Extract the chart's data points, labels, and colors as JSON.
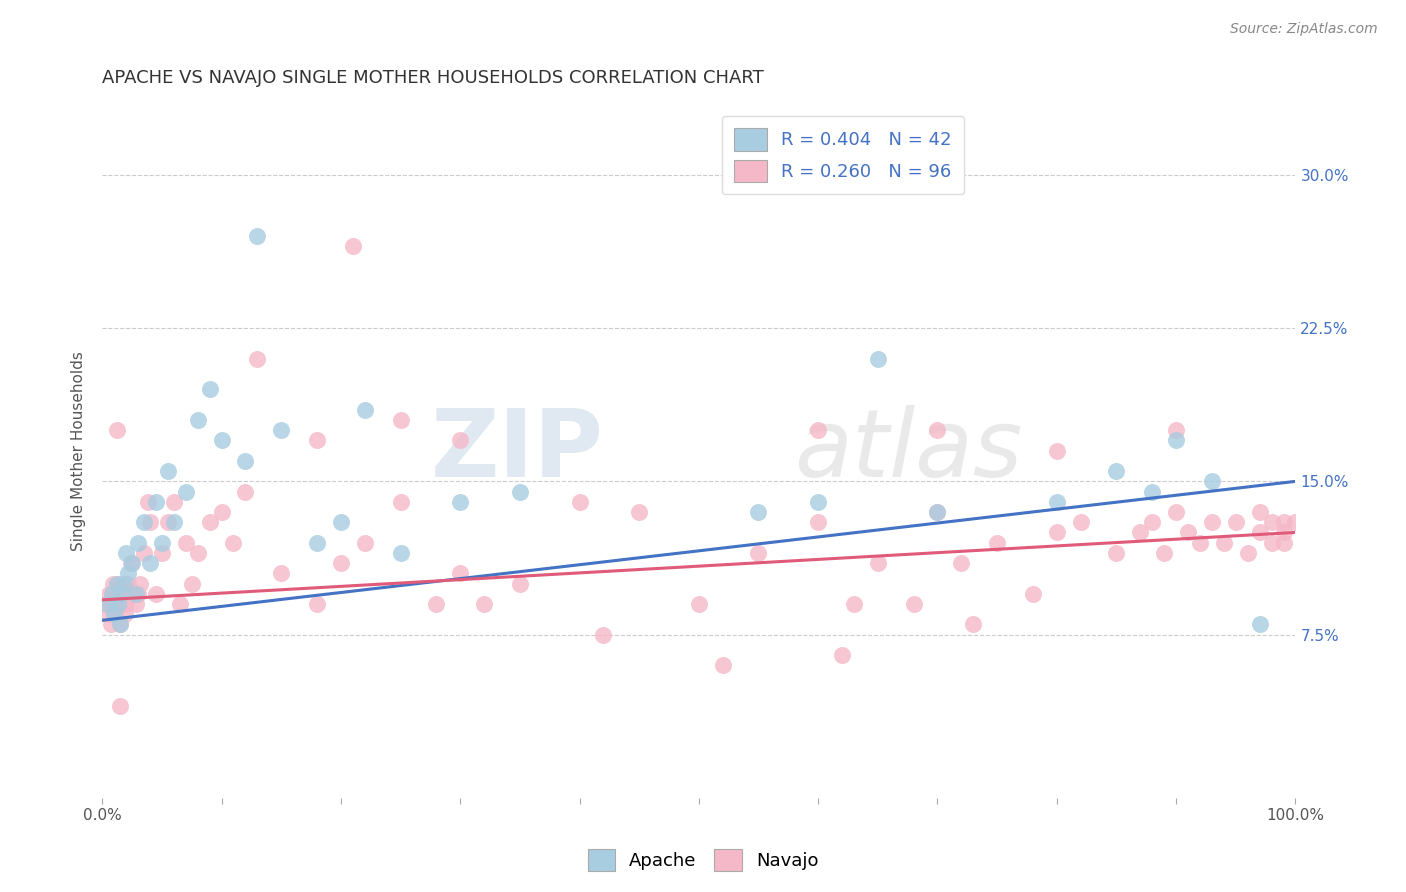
{
  "title": "APACHE VS NAVAJO SINGLE MOTHER HOUSEHOLDS CORRELATION CHART",
  "source": "Source: ZipAtlas.com",
  "ylabel": "Single Mother Households",
  "ytick_labels": [
    "7.5%",
    "15.0%",
    "22.5%",
    "30.0%"
  ],
  "ytick_values": [
    0.075,
    0.15,
    0.225,
    0.3
  ],
  "xlim": [
    0.0,
    1.0
  ],
  "ylim": [
    -0.005,
    0.335
  ],
  "apache_R": 0.404,
  "apache_N": 42,
  "navajo_R": 0.26,
  "navajo_N": 96,
  "apache_color": "#a8cce0",
  "navajo_color": "#f5b8c8",
  "apache_line_color": "#4472c4",
  "navajo_line_color": "#e05a7a",
  "legend_R_color": "#4472c4",
  "background_color": "#ffffff",
  "watermark_zip": "ZIP",
  "watermark_atlas": "atlas",
  "title_fontsize": 13,
  "source_fontsize": 10,
  "label_fontsize": 11,
  "tick_fontsize": 11,
  "legend_fontsize": 13,
  "apache_x": [
    0.005,
    0.008,
    0.01,
    0.012,
    0.013,
    0.015,
    0.016,
    0.018,
    0.02,
    0.022,
    0.025,
    0.028,
    0.03,
    0.035,
    0.04,
    0.045,
    0.05,
    0.055,
    0.06,
    0.07,
    0.08,
    0.09,
    0.1,
    0.12,
    0.13,
    0.15,
    0.18,
    0.2,
    0.22,
    0.25,
    0.3,
    0.35,
    0.55,
    0.6,
    0.65,
    0.7,
    0.8,
    0.85,
    0.88,
    0.9,
    0.93,
    0.97
  ],
  "apache_y": [
    0.09,
    0.095,
    0.085,
    0.1,
    0.09,
    0.08,
    0.095,
    0.1,
    0.115,
    0.105,
    0.11,
    0.095,
    0.12,
    0.13,
    0.11,
    0.14,
    0.12,
    0.155,
    0.13,
    0.145,
    0.18,
    0.195,
    0.17,
    0.16,
    0.27,
    0.175,
    0.12,
    0.13,
    0.185,
    0.115,
    0.14,
    0.145,
    0.135,
    0.14,
    0.21,
    0.135,
    0.14,
    0.155,
    0.145,
    0.17,
    0.15,
    0.08
  ],
  "navajo_x": [
    0.003,
    0.005,
    0.006,
    0.007,
    0.008,
    0.009,
    0.01,
    0.011,
    0.012,
    0.013,
    0.014,
    0.015,
    0.016,
    0.017,
    0.018,
    0.019,
    0.02,
    0.022,
    0.024,
    0.026,
    0.028,
    0.03,
    0.032,
    0.035,
    0.038,
    0.04,
    0.045,
    0.05,
    0.055,
    0.06,
    0.065,
    0.07,
    0.075,
    0.08,
    0.09,
    0.1,
    0.11,
    0.12,
    0.13,
    0.15,
    0.18,
    0.2,
    0.22,
    0.25,
    0.28,
    0.3,
    0.35,
    0.4,
    0.45,
    0.5,
    0.55,
    0.6,
    0.62,
    0.65,
    0.68,
    0.7,
    0.72,
    0.75,
    0.78,
    0.8,
    0.82,
    0.85,
    0.87,
    0.88,
    0.89,
    0.9,
    0.91,
    0.92,
    0.93,
    0.94,
    0.95,
    0.96,
    0.97,
    0.97,
    0.98,
    0.98,
    0.99,
    0.99,
    0.99,
    1.0,
    0.008,
    0.012,
    0.015,
    0.18,
    0.25,
    0.3,
    0.6,
    0.7,
    0.8,
    0.9,
    0.21,
    0.32,
    0.42,
    0.52,
    0.63,
    0.73
  ],
  "navajo_y": [
    0.09,
    0.085,
    0.095,
    0.08,
    0.09,
    0.1,
    0.095,
    0.085,
    0.09,
    0.1,
    0.095,
    0.08,
    0.09,
    0.095,
    0.1,
    0.085,
    0.09,
    0.1,
    0.11,
    0.095,
    0.09,
    0.095,
    0.1,
    0.115,
    0.14,
    0.13,
    0.095,
    0.115,
    0.13,
    0.14,
    0.09,
    0.12,
    0.1,
    0.115,
    0.13,
    0.135,
    0.12,
    0.145,
    0.21,
    0.105,
    0.09,
    0.11,
    0.12,
    0.14,
    0.09,
    0.105,
    0.1,
    0.14,
    0.135,
    0.09,
    0.115,
    0.13,
    0.065,
    0.11,
    0.09,
    0.135,
    0.11,
    0.12,
    0.095,
    0.125,
    0.13,
    0.115,
    0.125,
    0.13,
    0.115,
    0.135,
    0.125,
    0.12,
    0.13,
    0.12,
    0.13,
    0.115,
    0.125,
    0.135,
    0.13,
    0.12,
    0.125,
    0.13,
    0.12,
    0.13,
    0.095,
    0.175,
    0.04,
    0.17,
    0.18,
    0.17,
    0.175,
    0.175,
    0.165,
    0.175,
    0.265,
    0.09,
    0.075,
    0.06,
    0.09,
    0.08
  ]
}
